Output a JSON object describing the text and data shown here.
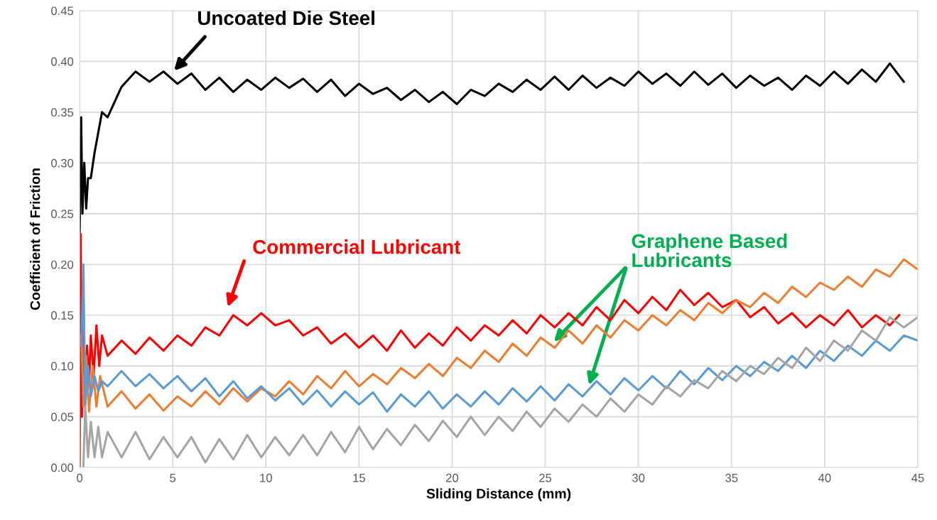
{
  "chart_data": {
    "type": "line",
    "xlabel": "Sliding Distance (mm)",
    "ylabel": "Coefficient of Friction",
    "xlim": [
      0,
      45
    ],
    "xticks": [
      0,
      5,
      10,
      15,
      20,
      25,
      30,
      35,
      40,
      45
    ],
    "ylim": [
      0,
      0.45
    ],
    "yticks": [
      {
        "value": 0,
        "label": "0.00"
      },
      {
        "value": 0.05,
        "label": "0.05"
      },
      {
        "value": 0.1,
        "label": "0.10"
      },
      {
        "value": 0.15,
        "label": "0.15"
      },
      {
        "value": 0.2,
        "label": "0.20"
      },
      {
        "value": 0.25,
        "label": "0.25"
      },
      {
        "value": 0.3,
        "label": "0.30"
      },
      {
        "value": 0.35,
        "label": "0.35"
      },
      {
        "value": 0.4,
        "label": "0.40"
      },
      {
        "value": 0.45,
        "label": "0.45"
      }
    ],
    "grid": true,
    "marker": "none",
    "line_style": "solid",
    "series": [
      {
        "color": "#000000",
        "x": [
          0,
          0.08,
          0.15,
          0.25,
          0.35,
          0.45,
          0.6,
          0.8,
          1.0,
          1.2,
          1.5,
          2.25,
          3,
          3.75,
          4.5,
          5.25,
          6,
          6.75,
          7.5,
          8.25,
          9,
          9.75,
          10.5,
          11.25,
          12,
          12.75,
          13.5,
          14.25,
          15,
          15.75,
          16.5,
          17.25,
          18,
          18.75,
          19.5,
          20.25,
          21,
          21.75,
          22.5,
          23.25,
          24,
          24.75,
          25.5,
          26.25,
          27,
          27.75,
          28.5,
          29.25,
          30,
          30.75,
          31.5,
          32.25,
          33,
          33.75,
          34.5,
          35.25,
          36,
          36.75,
          37.5,
          38.25,
          39,
          39.75,
          40.5,
          41.25,
          42,
          42.75,
          43.5,
          44.25
        ],
        "values": [
          0.23,
          0.345,
          0.25,
          0.3,
          0.255,
          0.285,
          0.285,
          0.31,
          0.33,
          0.35,
          0.345,
          0.375,
          0.39,
          0.38,
          0.39,
          0.378,
          0.388,
          0.372,
          0.384,
          0.37,
          0.382,
          0.372,
          0.384,
          0.374,
          0.383,
          0.37,
          0.382,
          0.366,
          0.378,
          0.368,
          0.374,
          0.362,
          0.372,
          0.36,
          0.37,
          0.358,
          0.372,
          0.366,
          0.378,
          0.37,
          0.382,
          0.372,
          0.385,
          0.372,
          0.386,
          0.374,
          0.384,
          0.376,
          0.39,
          0.378,
          0.388,
          0.376,
          0.39,
          0.377,
          0.388,
          0.374,
          0.386,
          0.376,
          0.384,
          0.372,
          0.386,
          0.376,
          0.39,
          0.378,
          0.392,
          0.38,
          0.398,
          0.38
        ]
      },
      {
        "color": "#ff0000",
        "x": [
          0,
          0.05,
          0.12,
          0.2,
          0.3,
          0.4,
          0.5,
          0.6,
          0.75,
          0.9,
          1.05,
          1.2,
          1.5,
          2.25,
          3,
          3.75,
          4.5,
          5.25,
          6,
          6.75,
          7.5,
          8.25,
          9,
          9.75,
          10.5,
          11.25,
          12,
          12.75,
          13.5,
          14.25,
          15,
          15.75,
          16.5,
          17.25,
          18,
          18.75,
          19.5,
          20.25,
          21,
          21.75,
          22.5,
          23.25,
          24,
          24.75,
          25.5,
          26.25,
          27,
          27.75,
          28.5,
          29.25,
          30,
          30.75,
          31.5,
          32.25,
          33,
          33.75,
          34.5,
          35.25,
          36,
          36.75,
          37.5,
          38.25,
          39,
          39.75,
          40.5,
          41.25,
          42,
          42.75,
          43.5,
          44.0
        ],
        "values": [
          0.0,
          0.23,
          0.05,
          0.16,
          0.07,
          0.12,
          0.08,
          0.13,
          0.09,
          0.14,
          0.1,
          0.13,
          0.11,
          0.125,
          0.112,
          0.128,
          0.115,
          0.13,
          0.12,
          0.138,
          0.13,
          0.15,
          0.14,
          0.152,
          0.14,
          0.145,
          0.13,
          0.138,
          0.122,
          0.132,
          0.118,
          0.13,
          0.115,
          0.135,
          0.118,
          0.132,
          0.12,
          0.138,
          0.125,
          0.14,
          0.13,
          0.145,
          0.132,
          0.15,
          0.138,
          0.152,
          0.14,
          0.158,
          0.145,
          0.165,
          0.152,
          0.168,
          0.155,
          0.175,
          0.16,
          0.172,
          0.158,
          0.165,
          0.148,
          0.158,
          0.142,
          0.152,
          0.138,
          0.15,
          0.14,
          0.155,
          0.138,
          0.15,
          0.14,
          0.15
        ]
      },
      {
        "color": "#ed7d31",
        "x": [
          0.1,
          0.2,
          0.35,
          0.5,
          0.7,
          0.9,
          1.1,
          1.5,
          2.25,
          3,
          3.75,
          4.5,
          5.25,
          6,
          6.75,
          7.5,
          8.25,
          9,
          9.75,
          10.5,
          11.25,
          12,
          12.75,
          13.5,
          14.25,
          15,
          15.75,
          16.5,
          17.25,
          18,
          18.75,
          19.5,
          20.25,
          21,
          21.75,
          22.5,
          23.25,
          24,
          24.75,
          25.5,
          26.25,
          27,
          27.75,
          28.5,
          29.25,
          30,
          30.75,
          31.5,
          32.25,
          33,
          33.75,
          34.5,
          35.25,
          36,
          36.75,
          37.5,
          38.25,
          39,
          39.75,
          40.5,
          41.25,
          42,
          42.75,
          43.5,
          44.25,
          45
        ],
        "values": [
          0.13,
          0.06,
          0.11,
          0.055,
          0.1,
          0.06,
          0.09,
          0.06,
          0.075,
          0.058,
          0.072,
          0.056,
          0.07,
          0.06,
          0.075,
          0.062,
          0.078,
          0.065,
          0.078,
          0.07,
          0.085,
          0.072,
          0.09,
          0.078,
          0.095,
          0.08,
          0.092,
          0.082,
          0.098,
          0.088,
          0.102,
          0.09,
          0.108,
          0.098,
          0.115,
          0.104,
          0.122,
          0.11,
          0.128,
          0.118,
          0.135,
          0.122,
          0.14,
          0.128,
          0.145,
          0.135,
          0.15,
          0.14,
          0.155,
          0.145,
          0.162,
          0.152,
          0.165,
          0.158,
          0.172,
          0.162,
          0.178,
          0.168,
          0.182,
          0.175,
          0.188,
          0.178,
          0.195,
          0.188,
          0.205,
          0.195
        ]
      },
      {
        "color": "#5b9bd5",
        "x": [
          0.1,
          0.2,
          0.3,
          0.45,
          0.6,
          0.8,
          1.0,
          1.2,
          1.5,
          2.25,
          3,
          3.75,
          4.5,
          5.25,
          6,
          6.75,
          7.5,
          8.25,
          9,
          9.75,
          10.5,
          11.25,
          12,
          12.75,
          13.5,
          14.25,
          15,
          15.75,
          16.5,
          17.25,
          18,
          18.75,
          19.5,
          20.25,
          21,
          21.75,
          22.5,
          23.25,
          24,
          24.75,
          25.5,
          26.25,
          27,
          27.75,
          28.5,
          29.25,
          30,
          30.75,
          31.5,
          32.25,
          33,
          33.75,
          34.5,
          35.25,
          36,
          36.75,
          37.5,
          38.25,
          39,
          39.75,
          40.5,
          41.25,
          42,
          42.75,
          43.5,
          44.25,
          45
        ],
        "values": [
          0.12,
          0.2,
          0.06,
          0.1,
          0.07,
          0.09,
          0.075,
          0.085,
          0.08,
          0.095,
          0.08,
          0.092,
          0.078,
          0.09,
          0.075,
          0.088,
          0.07,
          0.085,
          0.068,
          0.08,
          0.066,
          0.078,
          0.062,
          0.076,
          0.06,
          0.075,
          0.062,
          0.074,
          0.055,
          0.072,
          0.06,
          0.075,
          0.058,
          0.072,
          0.06,
          0.075,
          0.062,
          0.078,
          0.065,
          0.08,
          0.066,
          0.082,
          0.07,
          0.085,
          0.072,
          0.088,
          0.076,
          0.09,
          0.078,
          0.095,
          0.082,
          0.098,
          0.086,
          0.1,
          0.09,
          0.104,
          0.095,
          0.11,
          0.098,
          0.115,
          0.105,
          0.12,
          0.11,
          0.125,
          0.115,
          0.13,
          0.125
        ]
      },
      {
        "color": "#a5a5a5",
        "x": [
          0.2,
          0.3,
          0.45,
          0.6,
          0.8,
          1.0,
          1.2,
          1.5,
          2.25,
          3,
          3.75,
          4.5,
          5.25,
          6,
          6.75,
          7.5,
          8.25,
          9,
          9.75,
          10.5,
          11.25,
          12,
          12.75,
          13.5,
          14.25,
          15,
          15.75,
          16.5,
          17.25,
          18,
          18.75,
          19.5,
          20.25,
          21,
          21.75,
          22.5,
          23.25,
          24,
          24.75,
          25.5,
          26.25,
          27,
          27.75,
          28.5,
          29.25,
          30,
          30.75,
          31.5,
          32.25,
          33,
          33.75,
          34.5,
          35.25,
          36,
          36.75,
          37.5,
          38.25,
          39,
          39.75,
          40.5,
          41.25,
          42,
          42.75,
          43.5,
          44.25,
          45
        ],
        "values": [
          0.0,
          0.06,
          0.01,
          0.045,
          0.01,
          0.04,
          0.01,
          0.035,
          0.01,
          0.035,
          0.008,
          0.03,
          0.01,
          0.03,
          0.005,
          0.028,
          0.008,
          0.032,
          0.01,
          0.03,
          0.012,
          0.032,
          0.012,
          0.035,
          0.015,
          0.04,
          0.018,
          0.038,
          0.022,
          0.042,
          0.026,
          0.046,
          0.03,
          0.05,
          0.032,
          0.05,
          0.036,
          0.055,
          0.04,
          0.058,
          0.045,
          0.062,
          0.05,
          0.068,
          0.055,
          0.072,
          0.062,
          0.08,
          0.07,
          0.086,
          0.078,
          0.095,
          0.085,
          0.1,
          0.092,
          0.108,
          0.098,
          0.118,
          0.105,
          0.125,
          0.115,
          0.135,
          0.125,
          0.148,
          0.138,
          0.148
        ]
      }
    ],
    "annotations": [
      "Uncoated Die Steel",
      "Commercial Lubricant",
      "Graphene Based\nLubricants"
    ]
  }
}
